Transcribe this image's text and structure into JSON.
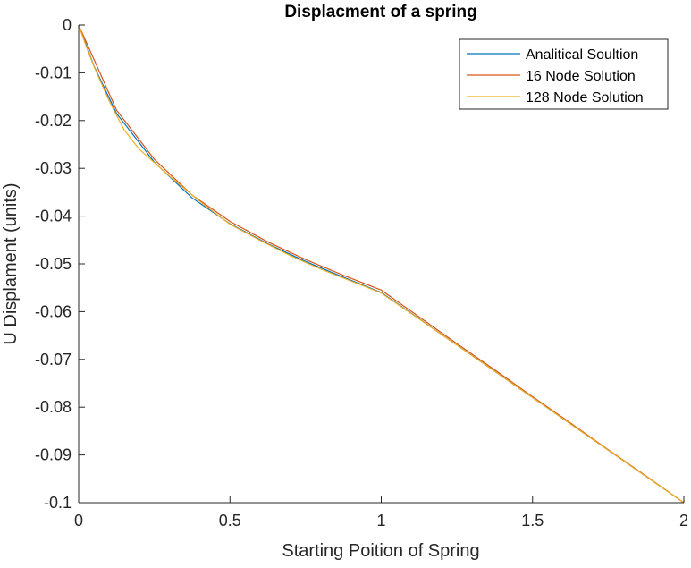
{
  "chart_data": {
    "type": "line",
    "title": "Displacment of a spring",
    "xlabel": "Starting Poition of Spring",
    "ylabel": "U Displament (units)",
    "xlim": [
      0,
      2
    ],
    "ylim": [
      -0.1,
      0
    ],
    "xticks": [
      0,
      0.5,
      1,
      1.5,
      2
    ],
    "xtick_labels": [
      "0",
      "0.5",
      "1",
      "1.5",
      "2"
    ],
    "yticks": [
      0,
      -0.01,
      -0.02,
      -0.03,
      -0.04,
      -0.05,
      -0.06,
      -0.07,
      -0.08,
      -0.09,
      -0.1
    ],
    "ytick_labels": [
      "0",
      "-0.01",
      "-0.02",
      "-0.03",
      "-0.04",
      "-0.05",
      "-0.06",
      "-0.07",
      "-0.08",
      "-0.09",
      "-0.1"
    ],
    "grid": false,
    "legend_position": "top-right",
    "series": [
      {
        "name": "Analitical Soultion",
        "color": "#0072BD",
        "x": [
          0,
          0.05,
          0.125,
          0.25,
          0.375,
          0.5,
          0.625,
          0.75,
          0.875,
          1.0,
          1.25,
          1.5,
          1.75,
          2.0
        ],
        "y": [
          0,
          -0.0085,
          -0.0185,
          -0.0287,
          -0.0362,
          -0.0416,
          -0.0458,
          -0.0495,
          -0.0528,
          -0.056,
          -0.067,
          -0.078,
          -0.089,
          -0.1
        ]
      },
      {
        "name": "16 Node Solution",
        "color": "#D95319",
        "x": [
          0,
          0.125,
          0.25,
          0.375,
          0.5,
          0.625,
          0.75,
          0.875,
          1.0,
          1.125,
          1.25,
          1.375,
          1.5,
          1.625,
          1.75,
          1.875,
          2.0
        ],
        "y": [
          0,
          -0.0178,
          -0.0281,
          -0.0356,
          -0.0411,
          -0.0454,
          -0.0491,
          -0.0524,
          -0.0555,
          -0.0611,
          -0.0667,
          -0.0722,
          -0.0778,
          -0.0833,
          -0.0889,
          -0.0944,
          -0.1
        ]
      },
      {
        "name": "128 Node Solution",
        "color": "#EDB120",
        "x": [
          0,
          0.025,
          0.05,
          0.1,
          0.15,
          0.2,
          0.25,
          0.3,
          0.4,
          0.5,
          0.6,
          0.7,
          0.8,
          0.9,
          1.0,
          1.25,
          1.5,
          1.75,
          2.0
        ],
        "y": [
          0,
          -0.0045,
          -0.0086,
          -0.0158,
          -0.0219,
          -0.026,
          -0.0288,
          -0.0316,
          -0.0369,
          -0.0417,
          -0.0451,
          -0.0483,
          -0.0511,
          -0.0536,
          -0.0561,
          -0.067,
          -0.078,
          -0.089,
          -0.1
        ]
      }
    ]
  }
}
